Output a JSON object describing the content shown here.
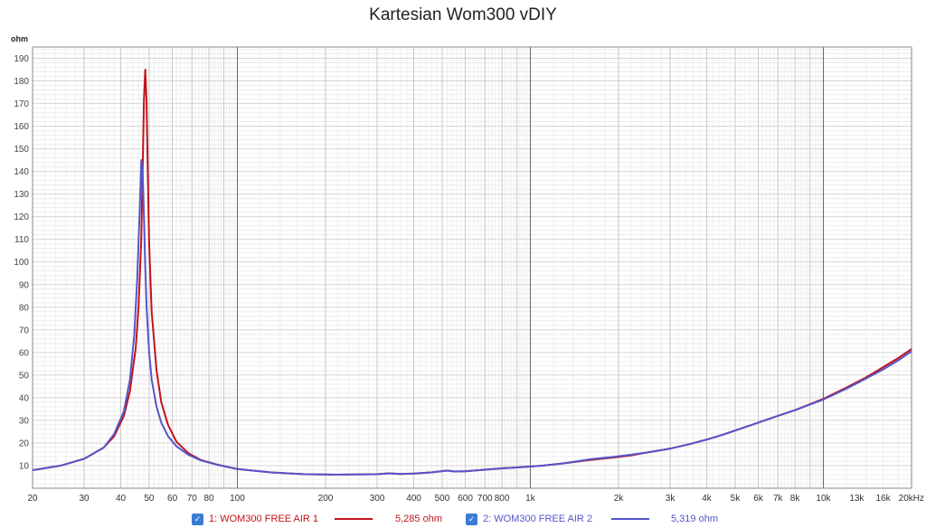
{
  "chart_data": {
    "type": "line",
    "title": "Kartesian Wom300 vDIY",
    "ylabel": "ohm",
    "xlabel": "",
    "x_unit": "kHz",
    "xscale": "log",
    "xlim": [
      20,
      20000
    ],
    "ylim": [
      0,
      195
    ],
    "grid": true,
    "legend_placement": "bottom",
    "yticks": [
      10,
      20,
      30,
      40,
      50,
      60,
      70,
      80,
      90,
      100,
      110,
      120,
      130,
      140,
      150,
      160,
      170,
      180,
      190
    ],
    "xticks": [
      {
        "value": 20,
        "label": "20"
      },
      {
        "value": 30,
        "label": "30"
      },
      {
        "value": 40,
        "label": "40"
      },
      {
        "value": 50,
        "label": "50"
      },
      {
        "value": 60,
        "label": "60"
      },
      {
        "value": 70,
        "label": "70"
      },
      {
        "value": 80,
        "label": "80"
      },
      {
        "value": 100,
        "label": "100"
      },
      {
        "value": 200,
        "label": "200"
      },
      {
        "value": 300,
        "label": "300"
      },
      {
        "value": 400,
        "label": "400"
      },
      {
        "value": 500,
        "label": "500"
      },
      {
        "value": 600,
        "label": "600"
      },
      {
        "value": 700,
        "label": "700"
      },
      {
        "value": 800,
        "label": "800"
      },
      {
        "value": 1000,
        "label": "1k"
      },
      {
        "value": 2000,
        "label": "2k"
      },
      {
        "value": 3000,
        "label": "3k"
      },
      {
        "value": 4000,
        "label": "4k"
      },
      {
        "value": 5000,
        "label": "5k"
      },
      {
        "value": 6000,
        "label": "6k"
      },
      {
        "value": 7000,
        "label": "7k"
      },
      {
        "value": 8000,
        "label": "8k"
      },
      {
        "value": 10000,
        "label": "10k"
      },
      {
        "value": 13000,
        "label": "13k"
      },
      {
        "value": 16000,
        "label": "16k"
      },
      {
        "value": 20000,
        "label": "20kHz"
      }
    ],
    "series": [
      {
        "name": "1: WOM300 FREE AIR 1",
        "value_label": "5,285 ohm",
        "color": "#c0141c",
        "x": [
          20,
          25,
          30,
          35,
          38,
          41,
          43,
          45,
          46,
          47,
          47.5,
          48,
          48.5,
          49,
          49.5,
          50,
          51,
          53,
          55,
          58,
          62,
          68,
          75,
          85,
          100,
          130,
          170,
          220,
          300,
          330,
          360,
          400,
          460,
          520,
          550,
          600,
          700,
          800,
          900,
          1000,
          1100,
          1300,
          1600,
          1900,
          2200,
          2500,
          3000,
          3500,
          4000,
          4500,
          5000,
          6000,
          7000,
          8000,
          10000,
          12000,
          14000,
          16000,
          18000,
          20000
        ],
        "y": [
          8,
          10,
          13,
          18,
          23,
          32,
          43,
          62,
          80,
          110,
          140,
          172,
          185,
          170,
          138,
          108,
          78,
          52,
          38,
          28,
          20.5,
          15.5,
          12.5,
          10.5,
          8.5,
          7,
          6.2,
          6,
          6.2,
          6.6,
          6.3,
          6.5,
          7,
          7.8,
          7.4,
          7.5,
          8.2,
          8.8,
          9.2,
          9.6,
          10,
          11,
          12.5,
          13.5,
          14.5,
          15.8,
          17.5,
          19.5,
          21.5,
          23.5,
          25.5,
          29,
          32,
          34.5,
          39.5,
          44.5,
          49,
          53.5,
          57.5,
          61.5
        ]
      },
      {
        "name": "2: WOM300 FREE AIR 2",
        "value_label": "5,319 ohm",
        "color": "#5555cc",
        "x": [
          20,
          25,
          30,
          35,
          38,
          41,
          43,
          44.5,
          45.5,
          46.5,
          47,
          47.5,
          48,
          48.5,
          49,
          50,
          51,
          53,
          55,
          58,
          62,
          68,
          75,
          85,
          100,
          130,
          170,
          220,
          300,
          330,
          360,
          400,
          460,
          520,
          550,
          600,
          700,
          800,
          900,
          1000,
          1100,
          1300,
          1600,
          1900,
          2200,
          2500,
          3000,
          3500,
          4000,
          4500,
          5000,
          6000,
          7000,
          8000,
          10000,
          12000,
          14000,
          16000,
          18000,
          20000
        ],
        "y": [
          8,
          10,
          13,
          18,
          24,
          34,
          48,
          68,
          92,
          125,
          145,
          140,
          120,
          98,
          80,
          60,
          48,
          36,
          29,
          23,
          18.5,
          14.8,
          12.3,
          10.4,
          8.5,
          7,
          6.2,
          6,
          6.2,
          6.6,
          6.3,
          6.5,
          7,
          7.8,
          7.4,
          7.5,
          8.2,
          8.8,
          9.2,
          9.6,
          10,
          11,
          12.8,
          13.8,
          14.8,
          15.8,
          17.5,
          19.5,
          21.5,
          23.5,
          25.5,
          29,
          32,
          34.5,
          39.2,
          44,
          48.5,
          52.5,
          56.5,
          60.5
        ]
      }
    ]
  }
}
